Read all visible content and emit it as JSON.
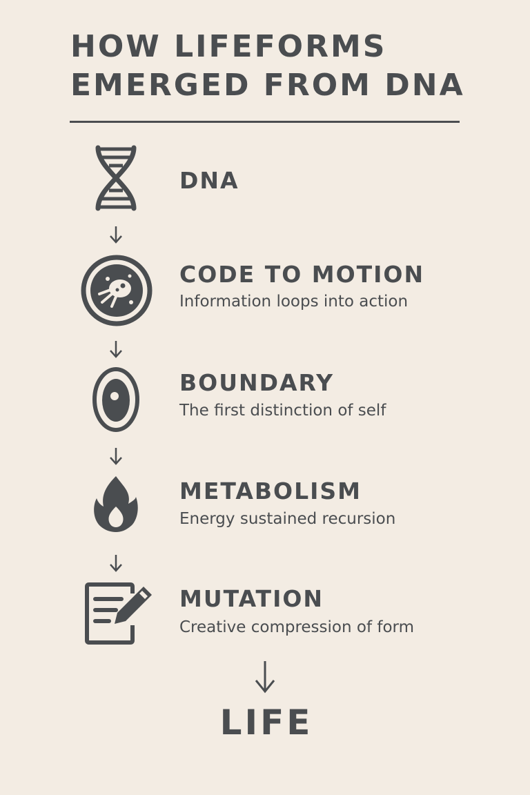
{
  "title": {
    "line1": "HOW LIFEFORMS",
    "line2": "EMERGED FROM DNA"
  },
  "steps": [
    {
      "icon": "dna-icon",
      "heading": "DNA",
      "description": ""
    },
    {
      "icon": "microbe-cell-icon",
      "heading": "CODE TO MOTION",
      "description": "Information loops into action"
    },
    {
      "icon": "cell-boundary-icon",
      "heading": "BOUNDARY",
      "description": "The first distinction of self"
    },
    {
      "icon": "flame-icon",
      "heading": "METABOLISM",
      "description": "Energy sustained recursion"
    },
    {
      "icon": "document-edit-icon",
      "heading": "MUTATION",
      "description": "Creative compression of form"
    }
  ],
  "final": {
    "label": "LIFE"
  },
  "colors": {
    "background": "#f3ece3",
    "ink": "#4a4d50"
  }
}
